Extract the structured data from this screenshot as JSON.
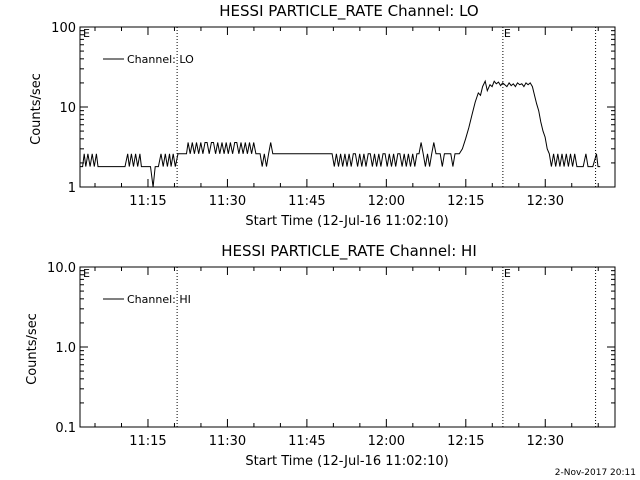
{
  "footer": {
    "timestamp": "2-Nov-2017 20:11"
  },
  "chart_data": [
    {
      "type": "line",
      "title": "HESSI PARTICLE_RATE Channel: LO",
      "xlabel": "Start Time (12-Jul-16 11:02:10)",
      "ylabel": "Counts/sec",
      "yscale": "log",
      "ylim": [
        1,
        100
      ],
      "yticks": [
        "1",
        "10",
        "100"
      ],
      "xlim_minutes_after_start": [
        0,
        101
      ],
      "xticks": [
        "11:15",
        "11:30",
        "11:45",
        "12:00",
        "12:15",
        "12:30"
      ],
      "legend_position": "top-left",
      "event_markers": [
        {
          "time": "11:20:30",
          "label": ""
        },
        {
          "time": "12:22:00",
          "label": "E"
        },
        {
          "time": "12:39:30",
          "label": ""
        }
      ],
      "corner_marker": "E",
      "series": [
        {
          "name": "Channel: LO",
          "points": [
            [
              0.0,
              1.8
            ],
            [
              0.5,
              1.8
            ],
            [
              0.8,
              2.6
            ],
            [
              1.1,
              1.8
            ],
            [
              1.5,
              2.6
            ],
            [
              1.9,
              1.8
            ],
            [
              2.3,
              2.6
            ],
            [
              2.7,
              1.8
            ],
            [
              3.1,
              2.6
            ],
            [
              3.4,
              1.8
            ],
            [
              4.5,
              1.8
            ],
            [
              6,
              1.8
            ],
            [
              7.5,
              1.8
            ],
            [
              8.5,
              1.8
            ],
            [
              9.0,
              2.6
            ],
            [
              9.3,
              1.8
            ],
            [
              9.7,
              2.6
            ],
            [
              10.1,
              1.8
            ],
            [
              10.5,
              2.6
            ],
            [
              10.9,
              1.8
            ],
            [
              11.3,
              2.6
            ],
            [
              11.6,
              1.8
            ],
            [
              12.5,
              1.8
            ],
            [
              13.3,
              1.8
            ],
            [
              13.8,
              1.0
            ],
            [
              14.2,
              1.8
            ],
            [
              14.8,
              1.8
            ],
            [
              15.3,
              2.6
            ],
            [
              15.7,
              1.8
            ],
            [
              16.1,
              2.6
            ],
            [
              16.5,
              1.8
            ],
            [
              16.9,
              2.6
            ],
            [
              17.2,
              1.8
            ],
            [
              17.6,
              2.6
            ],
            [
              18.0,
              1.8
            ],
            [
              18.5,
              2.6
            ],
            [
              20.1,
              2.6
            ],
            [
              20.4,
              3.6
            ],
            [
              20.8,
              2.6
            ],
            [
              21.2,
              3.6
            ],
            [
              21.6,
              2.6
            ],
            [
              22.0,
              3.6
            ],
            [
              22.4,
              2.6
            ],
            [
              22.8,
              3.6
            ],
            [
              23.2,
              2.6
            ],
            [
              23.6,
              3.6
            ],
            [
              24.0,
              3.6
            ],
            [
              24.4,
              2.6
            ],
            [
              24.8,
              3.6
            ],
            [
              25.2,
              3.6
            ],
            [
              25.6,
              2.6
            ],
            [
              26.0,
              3.6
            ],
            [
              26.4,
              2.6
            ],
            [
              26.8,
              3.6
            ],
            [
              27.2,
              2.6
            ],
            [
              27.6,
              3.6
            ],
            [
              28.0,
              2.6
            ],
            [
              28.4,
              3.6
            ],
            [
              28.8,
              2.6
            ],
            [
              29.2,
              3.6
            ],
            [
              29.6,
              3.6
            ],
            [
              30.0,
              2.6
            ],
            [
              30.4,
              3.6
            ],
            [
              30.8,
              2.6
            ],
            [
              31.2,
              3.6
            ],
            [
              31.6,
              2.6
            ],
            [
              32.0,
              3.6
            ],
            [
              32.4,
              2.6
            ],
            [
              32.8,
              3.6
            ],
            [
              33.2,
              2.6
            ],
            [
              33.6,
              2.6
            ],
            [
              34.0,
              2.6
            ],
            [
              34.4,
              1.8
            ],
            [
              34.8,
              2.6
            ],
            [
              35.2,
              1.8
            ],
            [
              35.6,
              2.6
            ],
            [
              36.0,
              3.6
            ],
            [
              36.4,
              2.6
            ],
            [
              38,
              2.6
            ],
            [
              40,
              2.6
            ],
            [
              43,
              2.6
            ],
            [
              46,
              2.6
            ],
            [
              47.6,
              2.6
            ],
            [
              48.0,
              1.8
            ],
            [
              48.4,
              2.6
            ],
            [
              48.8,
              1.8
            ],
            [
              49.2,
              2.6
            ],
            [
              49.6,
              1.8
            ],
            [
              50.0,
              2.6
            ],
            [
              50.4,
              1.8
            ],
            [
              50.8,
              2.6
            ],
            [
              51.2,
              1.8
            ],
            [
              51.6,
              2.6
            ],
            [
              52.0,
              2.6
            ],
            [
              52.4,
              1.8
            ],
            [
              52.8,
              2.6
            ],
            [
              53.2,
              1.8
            ],
            [
              53.6,
              2.6
            ],
            [
              54.0,
              1.8
            ],
            [
              54.4,
              2.6
            ],
            [
              54.8,
              2.6
            ],
            [
              55.2,
              1.8
            ],
            [
              55.6,
              2.6
            ],
            [
              56.0,
              1.8
            ],
            [
              56.4,
              2.6
            ],
            [
              56.8,
              1.8
            ],
            [
              57.2,
              2.6
            ],
            [
              57.6,
              2.6
            ],
            [
              58.0,
              1.8
            ],
            [
              58.4,
              2.6
            ],
            [
              58.8,
              1.8
            ],
            [
              59.2,
              2.6
            ],
            [
              59.6,
              1.8
            ],
            [
              60.0,
              2.6
            ],
            [
              60.4,
              2.6
            ],
            [
              60.8,
              1.8
            ],
            [
              61.2,
              2.6
            ],
            [
              61.6,
              1.8
            ],
            [
              62.0,
              2.6
            ],
            [
              62.4,
              1.8
            ],
            [
              62.8,
              2.6
            ],
            [
              63.2,
              1.8
            ],
            [
              63.6,
              2.6
            ],
            [
              64.0,
              2.6
            ],
            [
              64.4,
              3.6
            ],
            [
              64.8,
              2.6
            ],
            [
              65.2,
              1.8
            ],
            [
              65.6,
              2.6
            ],
            [
              66.0,
              1.8
            ],
            [
              66.4,
              2.6
            ],
            [
              66.8,
              3.6
            ],
            [
              67.2,
              2.6
            ],
            [
              67.6,
              2.6
            ],
            [
              68.0,
              2.6
            ],
            [
              68.4,
              1.8
            ],
            [
              68.8,
              2.6
            ],
            [
              69.2,
              2.6
            ],
            [
              70.0,
              2.6
            ],
            [
              70.4,
              1.8
            ],
            [
              70.8,
              2.6
            ],
            [
              71.6,
              2.6
            ],
            [
              72.2,
              3.0
            ],
            [
              72.8,
              4.0
            ],
            [
              73.4,
              5.5
            ],
            [
              74.0,
              8.0
            ],
            [
              74.6,
              11.5
            ],
            [
              75.2,
              15.0
            ],
            [
              75.6,
              14.0
            ],
            [
              76.0,
              18.0
            ],
            [
              76.5,
              21.0
            ],
            [
              76.9,
              16.0
            ],
            [
              77.4,
              19.0
            ],
            [
              77.8,
              18.0
            ],
            [
              78.2,
              21.0
            ],
            [
              78.6,
              19.5
            ],
            [
              79.0,
              20.5
            ],
            [
              79.4,
              18.5
            ],
            [
              79.8,
              20.0
            ],
            [
              80.2,
              19.0
            ],
            [
              80.6,
              18.0
            ],
            [
              81.0,
              20.0
            ],
            [
              81.4,
              18.5
            ],
            [
              81.8,
              19.5
            ],
            [
              82.2,
              18.0
            ],
            [
              82.6,
              20.0
            ],
            [
              83.0,
              19.0
            ],
            [
              83.4,
              19.5
            ],
            [
              83.8,
              18.0
            ],
            [
              84.2,
              20.0
            ],
            [
              84.6,
              19.0
            ],
            [
              85.0,
              20.0
            ],
            [
              85.4,
              18.0
            ],
            [
              85.8,
              14.0
            ],
            [
              86.2,
              11.0
            ],
            [
              86.6,
              9.0
            ],
            [
              87.0,
              6.5
            ],
            [
              87.4,
              5.0
            ],
            [
              87.8,
              4.2
            ],
            [
              88.2,
              3.0
            ],
            [
              88.6,
              2.6
            ],
            [
              89.0,
              1.8
            ],
            [
              89.4,
              2.6
            ],
            [
              89.8,
              1.8
            ],
            [
              90.2,
              2.6
            ],
            [
              90.6,
              1.8
            ],
            [
              91.0,
              2.6
            ],
            [
              91.4,
              1.8
            ],
            [
              91.8,
              2.6
            ],
            [
              92.2,
              1.8
            ],
            [
              92.6,
              2.6
            ],
            [
              93.0,
              1.8
            ],
            [
              93.4,
              2.6
            ],
            [
              93.8,
              1.8
            ],
            [
              95.0,
              1.8
            ],
            [
              95.5,
              2.6
            ],
            [
              95.9,
              1.8
            ],
            [
              96.4,
              1.8
            ],
            [
              96.8,
              1.8
            ],
            [
              97.5,
              2.6
            ],
            [
              97.8,
              1.8
            ],
            [
              98.2,
              1.8
            ]
          ]
        }
      ]
    },
    {
      "type": "line",
      "title": "HESSI PARTICLE_RATE Channel: HI",
      "xlabel": "Start Time (12-Jul-16 11:02:10)",
      "ylabel": "Counts/sec",
      "yscale": "log",
      "ylim": [
        0.1,
        10
      ],
      "yticks": [
        "0.1",
        "1.0",
        "10.0"
      ],
      "xlim_minutes_after_start": [
        0,
        101
      ],
      "xticks": [
        "11:15",
        "11:30",
        "11:45",
        "12:00",
        "12:15",
        "12:30"
      ],
      "legend_position": "top-left",
      "event_markers": [
        {
          "time": "11:20:30",
          "label": ""
        },
        {
          "time": "12:22:00",
          "label": "E"
        },
        {
          "time": "12:39:30",
          "label": ""
        }
      ],
      "corner_marker": "E",
      "series": [
        {
          "name": "Channel: HI",
          "points": []
        }
      ]
    }
  ]
}
